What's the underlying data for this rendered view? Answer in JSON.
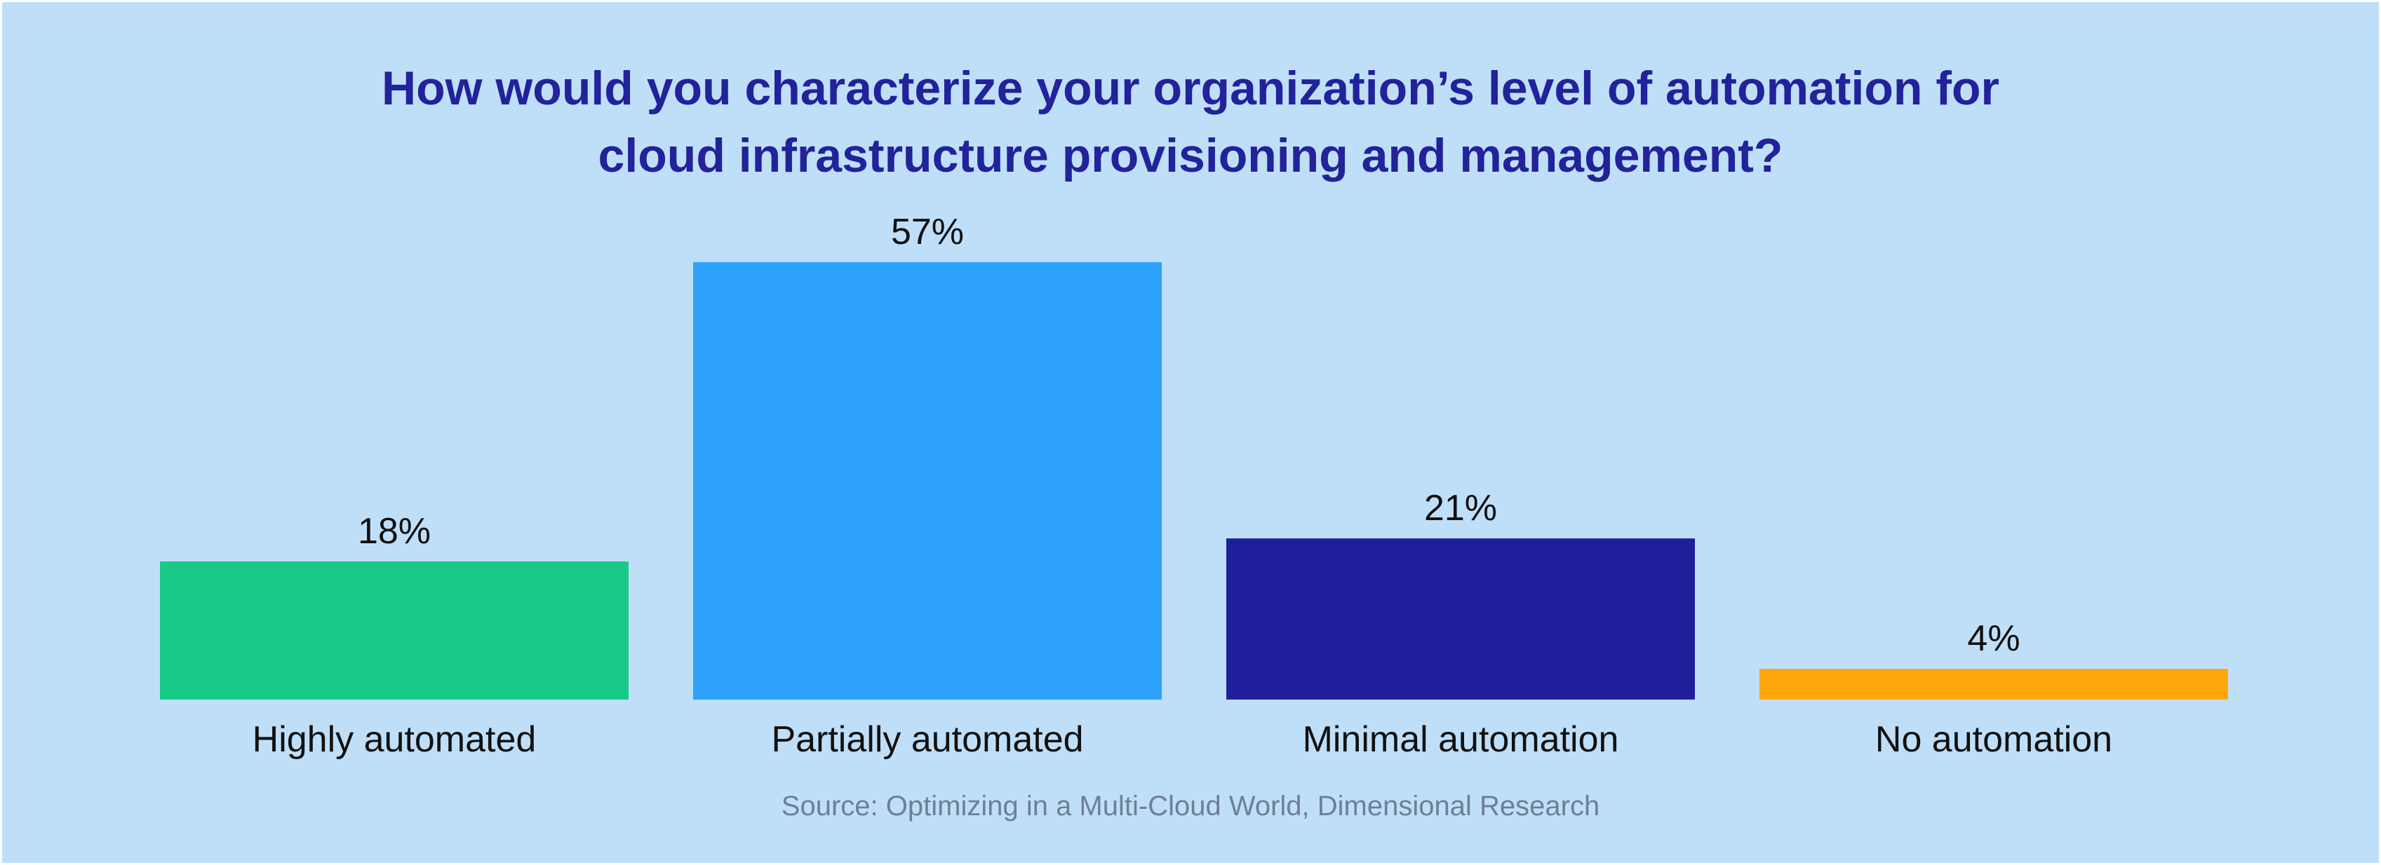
{
  "title_lines": [
    "How would you characterize your organization’s level of automation for",
    "cloud infrastructure provisioning and management?"
  ],
  "source": "Source: Optimizing in a Multi-Cloud World, Dimensional Research",
  "chart_data": {
    "type": "bar",
    "title": "How would you characterize your organization’s level of automation for cloud infrastructure provisioning and management?",
    "categories": [
      "Highly automated",
      "Partially automated",
      "Minimal automation",
      "No automation"
    ],
    "values": [
      18,
      57,
      21,
      4
    ],
    "value_labels": [
      "18%",
      "57%",
      "21%",
      "4%"
    ],
    "colors": [
      "#19c987",
      "#2ca2fd",
      "#1f1f9c",
      "#ffa60c"
    ],
    "unit": "%",
    "ylim": [
      0,
      57
    ],
    "grid": false,
    "legend": "none"
  }
}
